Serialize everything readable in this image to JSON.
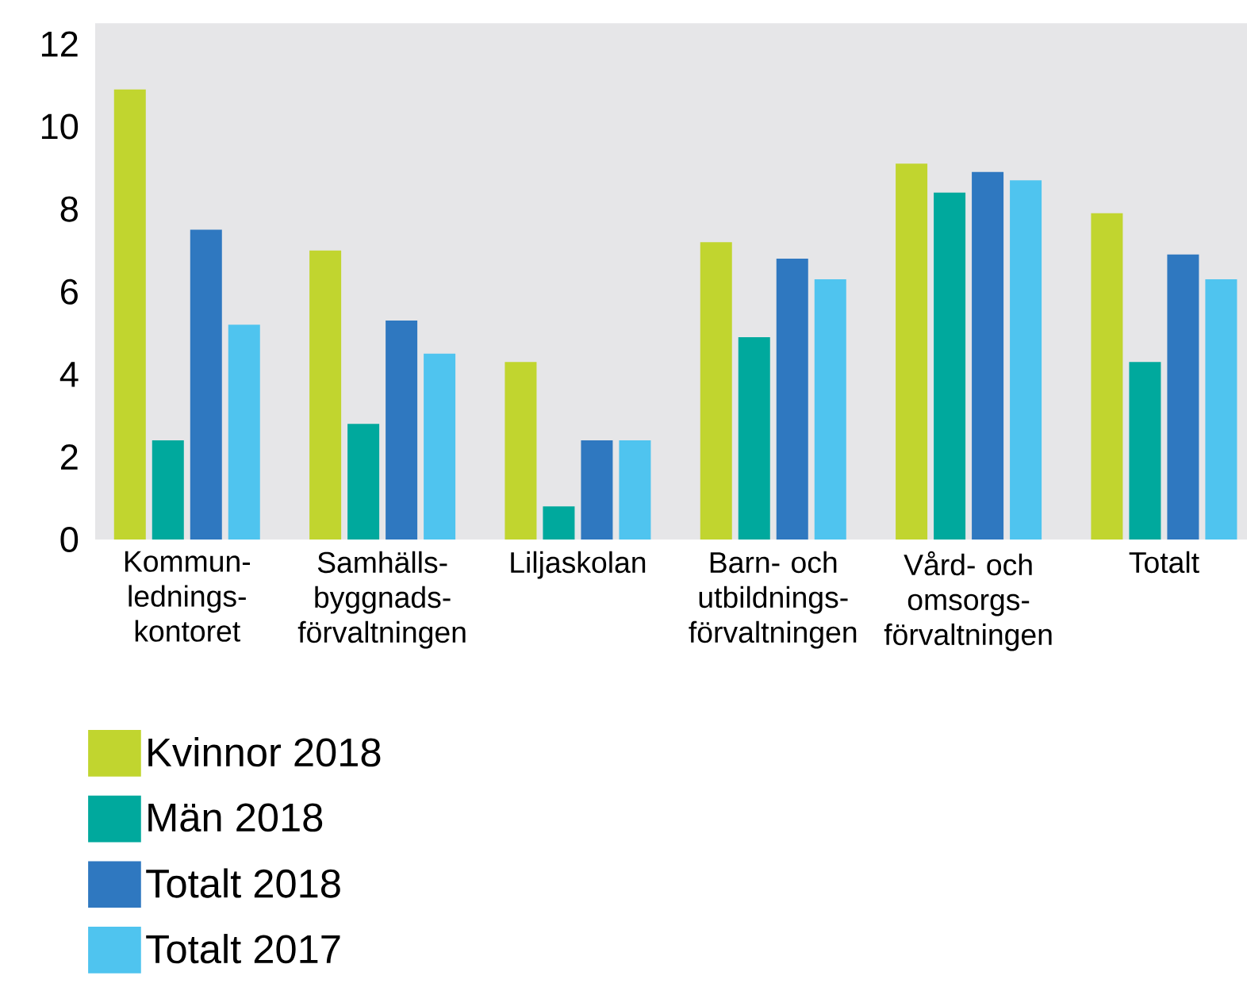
{
  "chart_data": {
    "type": "bar",
    "categories": [
      "Kommun- lednings- kontoret",
      "Samhälls- byggnads- förvaltningen",
      "Liljaskolan",
      "Barn- och utbildnings- förvaltningen",
      "Vård- och omsorgs- förvaltningen",
      "Totalt"
    ],
    "series": [
      {
        "name": "Kvinnor 2018",
        "color": "#c1d52f",
        "values": [
          10.9,
          7.0,
          4.3,
          7.2,
          9.1,
          7.9
        ]
      },
      {
        "name": "Män 2018",
        "color": "#00a99d",
        "values": [
          2.4,
          2.8,
          0.8,
          4.9,
          8.4,
          4.3
        ]
      },
      {
        "name": "Totalt 2018",
        "color": "#2f78c0",
        "values": [
          7.5,
          5.3,
          2.4,
          6.8,
          8.9,
          6.9
        ]
      },
      {
        "name": "Totalt 2017",
        "color": "#4fc4ef",
        "values": [
          5.2,
          4.5,
          2.4,
          6.3,
          8.7,
          6.3
        ]
      }
    ],
    "ylim": [
      0,
      12.5
    ],
    "yticks": [
      0,
      2,
      4,
      6,
      8,
      10,
      12
    ],
    "legend": "bottom left"
  }
}
